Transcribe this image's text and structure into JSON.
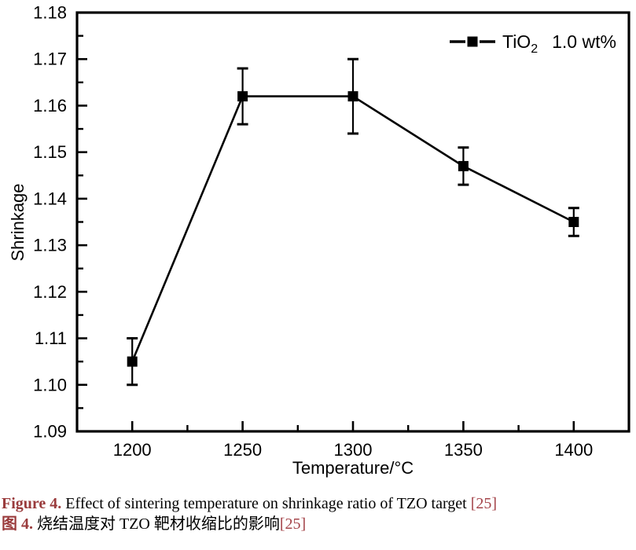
{
  "chart_data": {
    "type": "line",
    "title": "",
    "xlabel": "Temperature/°C",
    "ylabel": "Shrinkage",
    "xlim": [
      1175,
      1425
    ],
    "ylim": [
      1.09,
      1.18
    ],
    "grid": false,
    "x": [
      1200,
      1250,
      1300,
      1350,
      1400
    ],
    "series": [
      {
        "name": "TiO2 1.0 wt%",
        "values": [
          1.105,
          1.162,
          1.162,
          1.147,
          1.135
        ],
        "yerr": [
          0.005,
          0.006,
          0.008,
          0.004,
          0.003
        ],
        "color": "#000000",
        "marker": "filled-square"
      }
    ],
    "x_ticks": [
      1200,
      1250,
      1300,
      1350,
      1400
    ],
    "x_minor_ticks": [
      1225,
      1275,
      1325,
      1375
    ],
    "y_ticks": [
      1.09,
      1.1,
      1.11,
      1.12,
      1.13,
      1.14,
      1.15,
      1.16,
      1.17,
      1.18
    ],
    "y_minor_ticks": [
      1.095,
      1.105,
      1.115,
      1.125,
      1.135,
      1.145,
      1.155,
      1.165,
      1.175
    ],
    "legend": {
      "position": "top-right",
      "formula": "TiO",
      "formula_sub": "2",
      "label": "1.0 wt%"
    },
    "axis_color": "#000000"
  },
  "caption": {
    "en": {
      "label": "Figure 4.",
      "text": " Effect of sintering temperature on shrinkage ratio of TZO target ",
      "ref": "[25]"
    },
    "zh": {
      "label": "图 4.",
      "text": " 烧结温度对 TZO 靶材收缩比的影响",
      "ref": "[25]"
    },
    "label_color": "#9a3b3c",
    "ref_color": "#a4444a"
  }
}
